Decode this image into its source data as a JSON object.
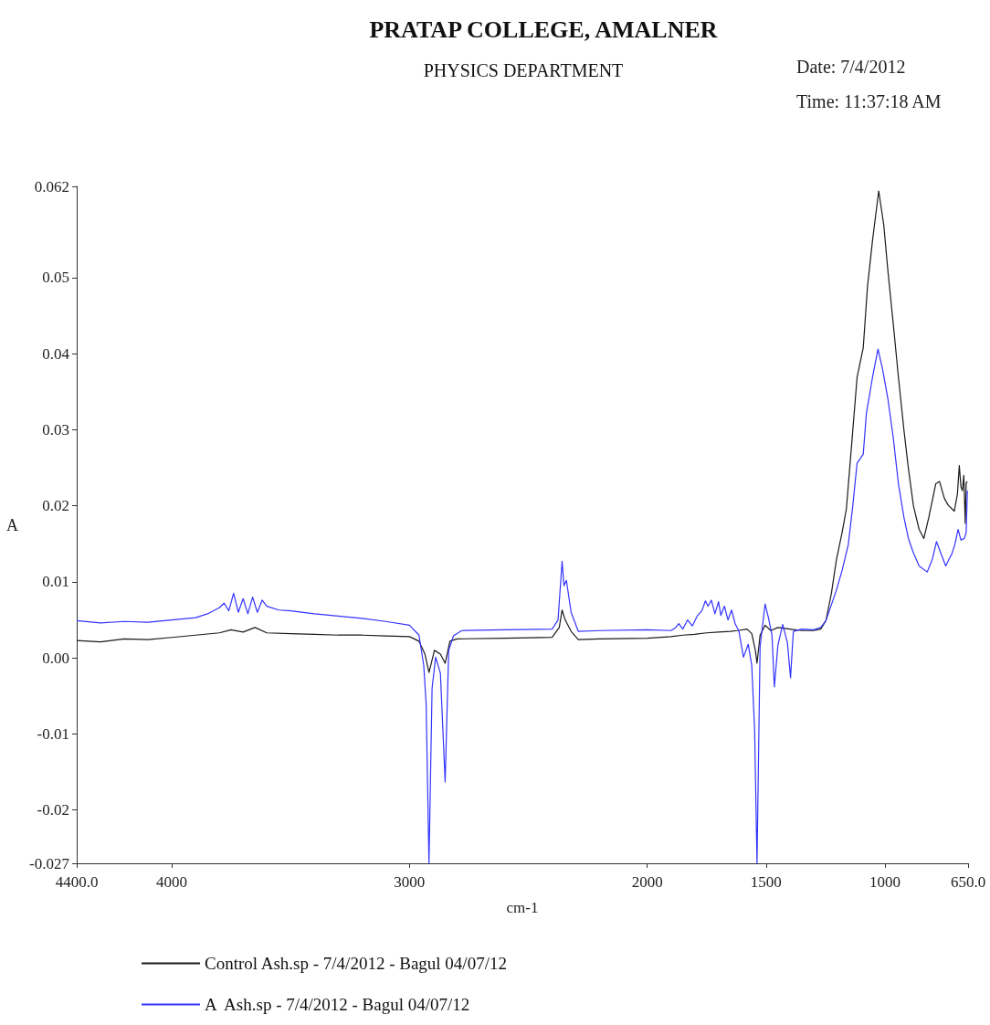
{
  "chart_data": {
    "type": "line",
    "title": "PRATAP COLLEGE, AMALNER",
    "subtitle": "PHYSICS DEPARTMENT",
    "annotations": [
      "Date: 7/4/2012",
      "Time: 11:37:18 AM"
    ],
    "xlabel": "cm-1",
    "ylabel": "A",
    "xlim": [
      4400,
      650
    ],
    "xticks": [
      {
        "value": 4400,
        "label": "4400.0"
      },
      4000,
      3000,
      2000,
      1500,
      1000,
      {
        "value": 650,
        "label": "650.0"
      }
    ],
    "ylim": [
      -0.027,
      0.062
    ],
    "yticks": [
      -0.027,
      -0.02,
      -0.01,
      {
        "value": 0,
        "label": "0.00"
      },
      0.01,
      0.02,
      0.03,
      0.04,
      0.05,
      0.062
    ],
    "grid": false,
    "legend": "bottom left",
    "series": [
      {
        "name": "Control Ash.sp - 7/4/2012 - Bagul 04/07/12",
        "color": "#1a1a1a",
        "x": [
          4400,
          4300,
          4200,
          4100,
          4000,
          3900,
          3800,
          3750,
          3700,
          3650,
          3600,
          3500,
          3400,
          3300,
          3200,
          3100,
          3000,
          2960,
          2935,
          2918,
          2895,
          2870,
          2850,
          2830,
          2800,
          2600,
          2400,
          2370,
          2358,
          2345,
          2320,
          2290,
          2200,
          2000,
          1900,
          1850,
          1800,
          1750,
          1700,
          1650,
          1620,
          1580,
          1560,
          1545,
          1538,
          1525,
          1504,
          1480,
          1450,
          1400,
          1350,
          1300,
          1270,
          1248,
          1225,
          1204,
          1180,
          1162,
          1140,
          1117,
          1091,
          1073,
          1052,
          1026,
          1005,
          987,
          965,
          943,
          920,
          901,
          880,
          856,
          836,
          815,
          786,
          770,
          750,
          734,
          708,
          695,
          687,
          680,
          674,
          668,
          662,
          658,
          653
        ],
        "values": [
          0.0023,
          0.0021,
          0.0025,
          0.0024,
          0.0027,
          0.003,
          0.0033,
          0.0037,
          0.0034,
          0.004,
          0.0033,
          0.0032,
          0.0031,
          0.003,
          0.003,
          0.0029,
          0.0028,
          0.0022,
          0.0005,
          -0.0019,
          0.001,
          0.0005,
          -0.0007,
          0.0022,
          0.0025,
          0.0026,
          0.0027,
          0.004,
          0.0063,
          0.005,
          0.0035,
          0.0024,
          0.0025,
          0.0026,
          0.0028,
          0.003,
          0.0031,
          0.0033,
          0.0034,
          0.0035,
          0.0036,
          0.0038,
          0.0032,
          0.001,
          -0.0007,
          0.003,
          0.0043,
          0.0036,
          0.004,
          0.0038,
          0.0036,
          0.0036,
          0.0038,
          0.0049,
          0.0085,
          0.0129,
          0.0165,
          0.0196,
          0.028,
          0.0369,
          0.0408,
          0.0489,
          0.0549,
          0.0614,
          0.057,
          0.0508,
          0.044,
          0.0369,
          0.03,
          0.0249,
          0.02,
          0.0169,
          0.0157,
          0.0185,
          0.0229,
          0.0232,
          0.021,
          0.0201,
          0.0193,
          0.0215,
          0.0253,
          0.0225,
          0.022,
          0.024,
          0.0177,
          0.023,
          0.0232
        ]
      },
      {
        "name": "A  Ash.sp - 7/4/2012 - Bagul 04/07/12",
        "color": "#3333ff",
        "x": [
          4400,
          4300,
          4200,
          4100,
          4000,
          3900,
          3850,
          3800,
          3780,
          3760,
          3740,
          3720,
          3700,
          3680,
          3660,
          3640,
          3620,
          3600,
          3550,
          3500,
          3400,
          3300,
          3200,
          3100,
          3000,
          2960,
          2940,
          2930,
          2918,
          2905,
          2890,
          2870,
          2850,
          2835,
          2815,
          2780,
          2600,
          2400,
          2375,
          2358,
          2350,
          2340,
          2320,
          2290,
          2200,
          2000,
          1900,
          1880,
          1867,
          1850,
          1830,
          1810,
          1790,
          1770,
          1755,
          1744,
          1730,
          1715,
          1700,
          1690,
          1675,
          1660,
          1645,
          1630,
          1614,
          1595,
          1575,
          1560,
          1548,
          1538,
          1525,
          1504,
          1490,
          1475,
          1465,
          1450,
          1430,
          1410,
          1397,
          1385,
          1350,
          1300,
          1270,
          1248,
          1225,
          1204,
          1180,
          1154,
          1135,
          1117,
          1091,
          1078,
          1052,
          1029,
          1010,
          987,
          965,
          943,
          920,
          901,
          880,
          856,
          822,
          800,
          783,
          765,
          744,
          730,
          718,
          705,
          692,
          680,
          666,
          658,
          653
        ],
        "values": [
          0.0049,
          0.0046,
          0.0048,
          0.0047,
          0.005,
          0.0053,
          0.0058,
          0.0066,
          0.0072,
          0.0062,
          0.0085,
          0.006,
          0.0078,
          0.0058,
          0.008,
          0.006,
          0.0076,
          0.0068,
          0.0063,
          0.0062,
          0.0058,
          0.0055,
          0.0052,
          0.0048,
          0.0043,
          0.003,
          -0.001,
          -0.006,
          -0.027,
          -0.004,
          0.0001,
          -0.002,
          -0.0163,
          0.001,
          0.0029,
          0.0036,
          0.0037,
          0.0038,
          0.005,
          0.0127,
          0.0095,
          0.0102,
          0.006,
          0.0035,
          0.0036,
          0.0037,
          0.0036,
          0.004,
          0.0045,
          0.0038,
          0.005,
          0.0042,
          0.0055,
          0.0062,
          0.0075,
          0.0068,
          0.0076,
          0.0058,
          0.0074,
          0.0056,
          0.0068,
          0.005,
          0.0063,
          0.0045,
          0.0035,
          0.0001,
          0.0018,
          -0.001,
          -0.0095,
          -0.027,
          0.0015,
          0.0071,
          0.0053,
          0.003,
          -0.0038,
          0.0017,
          0.0044,
          0.002,
          -0.0026,
          0.0035,
          0.0038,
          0.0037,
          0.004,
          0.0049,
          0.007,
          0.0089,
          0.0115,
          0.0149,
          0.02,
          0.0256,
          0.0268,
          0.0321,
          0.0369,
          0.0406,
          0.038,
          0.034,
          0.029,
          0.0229,
          0.0185,
          0.0157,
          0.0138,
          0.0121,
          0.0113,
          0.013,
          0.0153,
          0.0138,
          0.0121,
          0.013,
          0.0137,
          0.015,
          0.0169,
          0.0155,
          0.0157,
          0.0165,
          0.022
        ]
      }
    ]
  }
}
